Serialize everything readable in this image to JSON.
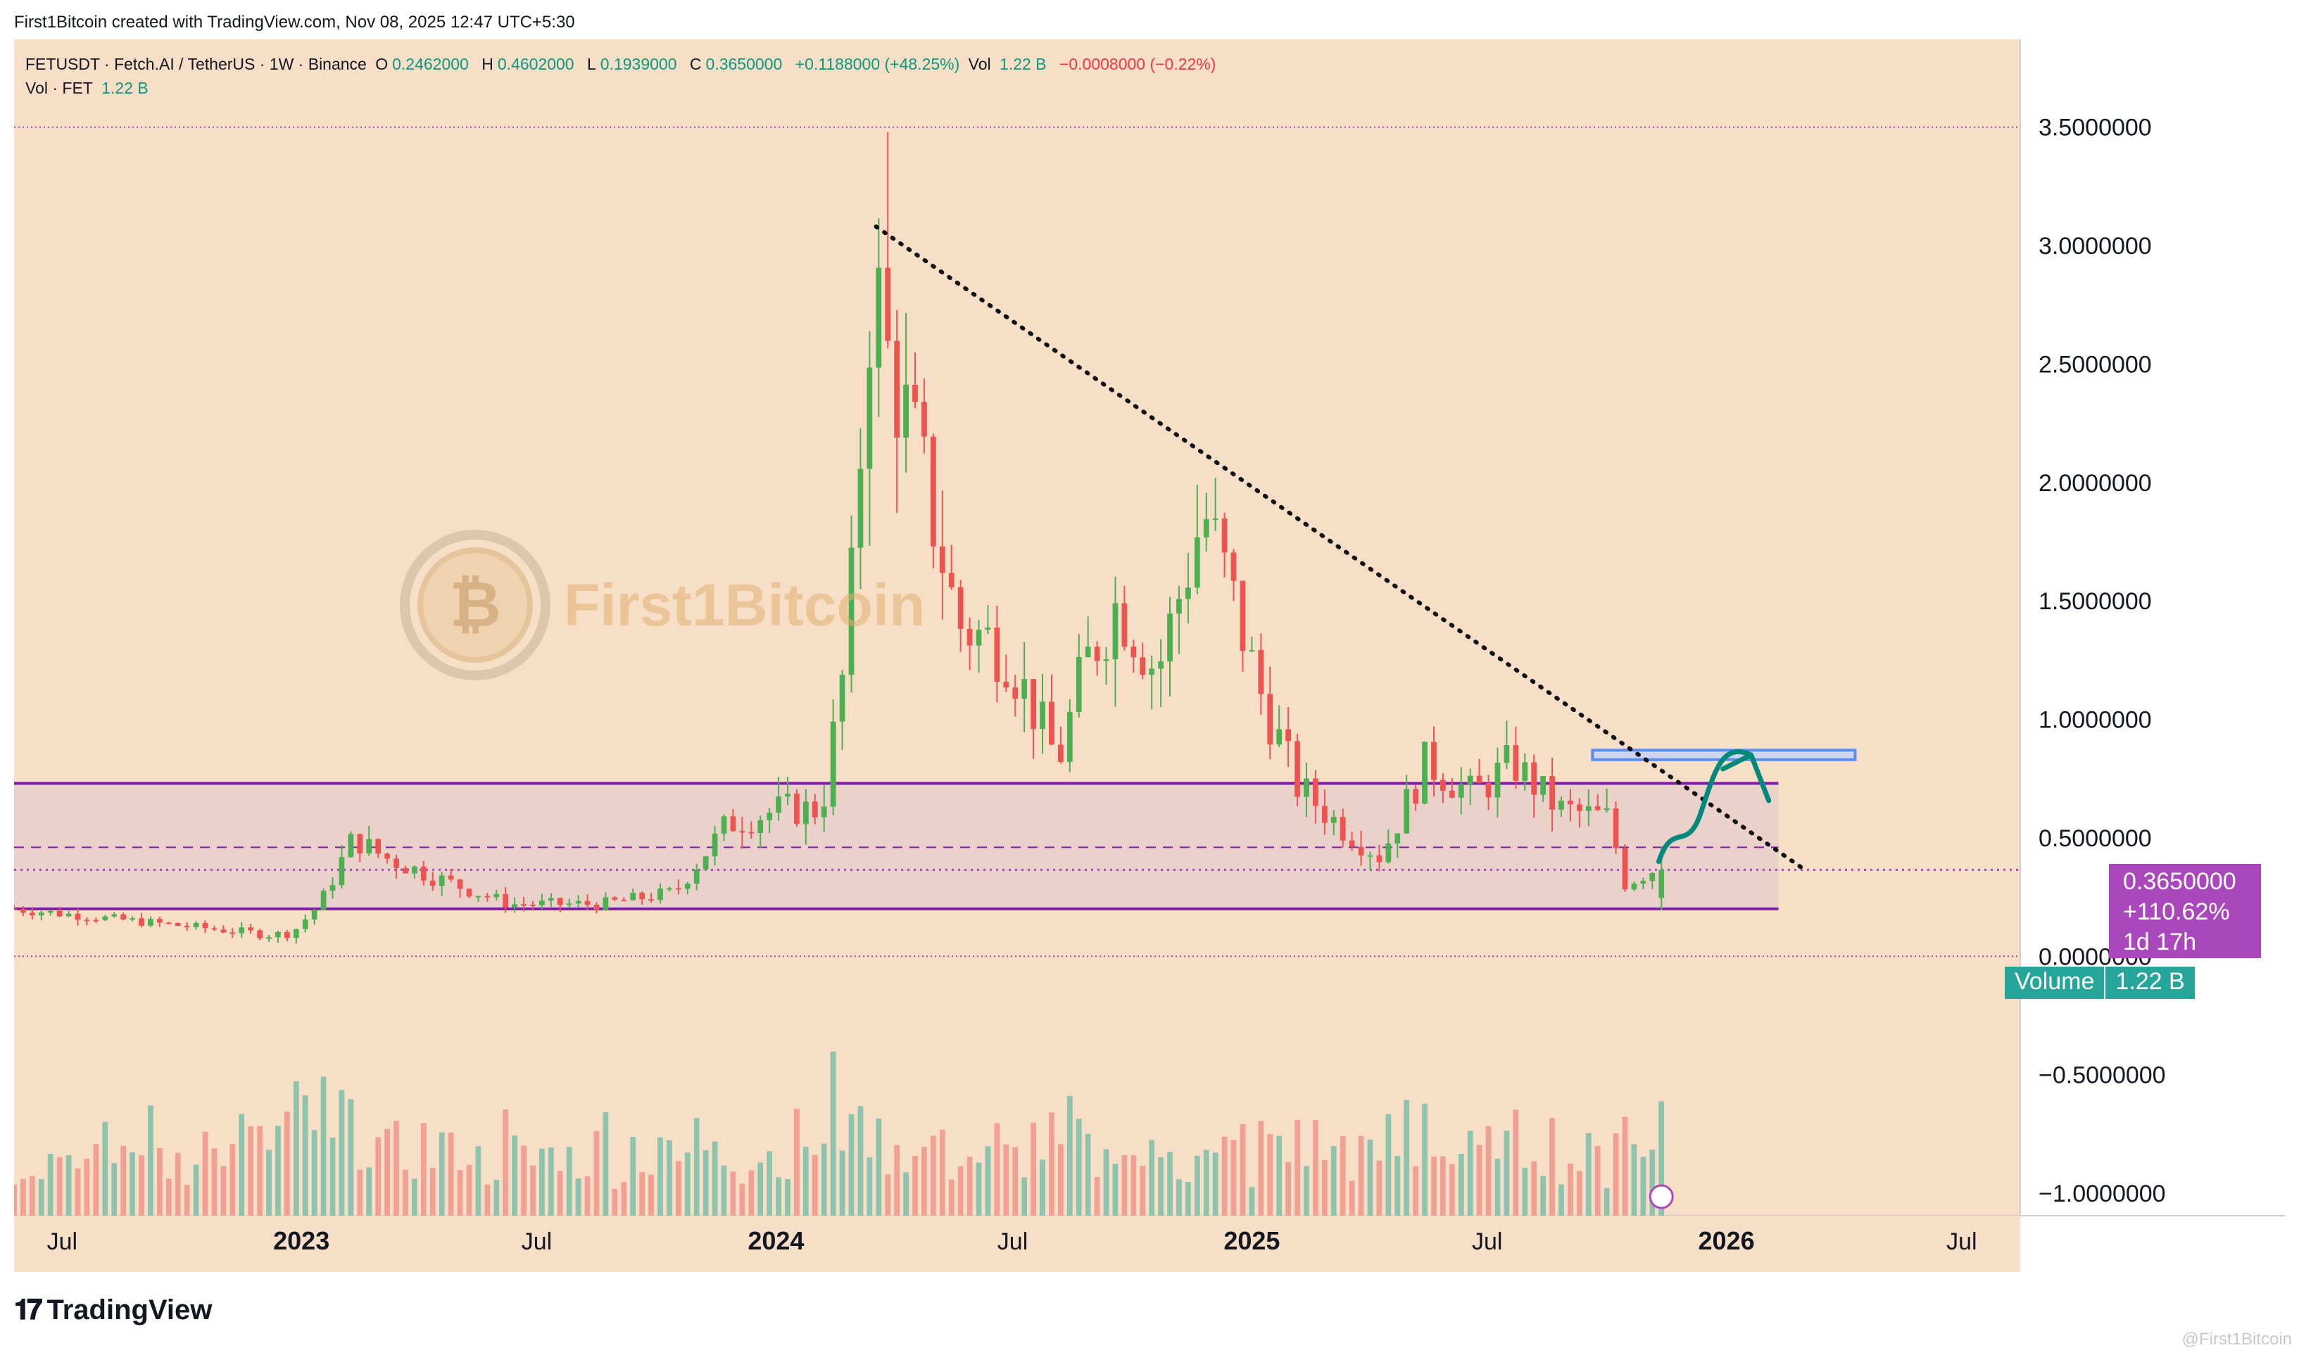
{
  "header": {
    "created_by": "First1Bitcoin created with TradingView.com, Nov 08, 2025 12:47 UTC+5:30"
  },
  "legend": {
    "symbol": "FETUSDT · Fetch.AI / TetherUS · 1W · Binance",
    "o_label": "O",
    "o_value": "0.2462000",
    "h_label": "H",
    "h_value": "0.4602000",
    "l_label": "L",
    "l_value": "0.1939000",
    "c_label": "C",
    "c_value": "0.3650000",
    "change": "+0.1188000 (+48.25%)",
    "vol_label": "Vol",
    "vol_value": "1.22 B",
    "vol_change": "−0.0008000 (−0.22%)",
    "vol_line_label": "Vol · FET",
    "vol_line_value": "1.22 B"
  },
  "watermark": {
    "text": "First1Bitcoin",
    "corner_text": "@First1Bitcoin"
  },
  "price_tag": {
    "price": "0.3650000",
    "change": "+110.62%",
    "countdown": "1d 17h"
  },
  "volume_tag": {
    "label": "Volume",
    "value": "1.22 B"
  },
  "footer": {
    "brand": "TradingView"
  },
  "colors": {
    "background": "#f7dfc7",
    "up": "#4caf50",
    "down": "#ef5350",
    "vol_up": "#8ec3ad",
    "vol_down": "#f2a093",
    "range_box": "#7b1fa2",
    "target_box": "#5b8def",
    "arrow": "#00897b",
    "price_tag": "#ab47bc",
    "volume_tag": "#26a69a"
  },
  "chart_data": {
    "type": "candlestick",
    "symbol": "FETUSDT",
    "interval": "1W",
    "y_axis": {
      "range": [
        -1.0,
        3.9
      ],
      "ticks": [
        "3.5000000",
        "3.0000000",
        "2.5000000",
        "2.0000000",
        "1.5000000",
        "1.0000000",
        "0.5000000",
        "0.0000000",
        "−0.5000000",
        "−1.0000000"
      ],
      "tick_values": [
        3.5,
        3.0,
        2.5,
        2.0,
        1.5,
        1.0,
        0.5,
        0.0,
        -0.5,
        -1.0
      ]
    },
    "x_axis": {
      "ticks": [
        "Jul",
        "2023",
        "Jul",
        "2024",
        "Jul",
        "2025",
        "Jul",
        "2026",
        "Jul"
      ],
      "tick_dates": [
        "2022-07-01",
        "2023-01-01",
        "2023-07-01",
        "2024-01-01",
        "2024-07-01",
        "2025-01-01",
        "2025-07-01",
        "2026-01-01",
        "2026-07-01"
      ],
      "range": [
        "2022-05-25",
        "2026-08-15"
      ]
    },
    "horizontal_levels": [
      3.5,
      0.0
    ],
    "range_box": {
      "top": 0.73,
      "bottom": 0.2,
      "mid_dashed": 0.46,
      "start": "2022-05-25",
      "end": "2026-02-10"
    },
    "current_price_line": 0.365,
    "target_zone": {
      "low": 0.83,
      "high": 0.87,
      "start": "2025-09-20",
      "end": "2026-04-10"
    },
    "trendline": {
      "start": [
        "2024-03-18",
        3.08
      ],
      "end": [
        "2026-03-01",
        0.37
      ]
    },
    "anchors": [
      [
        "2022-05-25",
        0.2
      ],
      [
        "2022-12-10",
        0.09
      ],
      [
        "2022-12-25",
        0.1
      ],
      [
        "2023-01-15",
        0.22
      ],
      [
        "2023-02-10",
        0.5
      ],
      [
        "2023-03-05",
        0.42
      ],
      [
        "2023-04-20",
        0.32
      ],
      [
        "2023-06-10",
        0.22
      ],
      [
        "2023-08-20",
        0.22
      ],
      [
        "2023-10-15",
        0.27
      ],
      [
        "2023-11-25",
        0.56
      ],
      [
        "2024-01-05",
        0.62
      ],
      [
        "2024-02-05",
        0.62
      ],
      [
        "2024-02-25",
        1.3
      ],
      [
        "2024-03-15",
        2.9
      ],
      [
        "2024-03-28",
        2.5
      ],
      [
        "2024-04-20",
        2.1
      ],
      [
        "2024-05-20",
        1.4
      ],
      [
        "2024-06-25",
        1.3
      ],
      [
        "2024-08-05",
        0.82
      ],
      [
        "2024-08-25",
        1.22
      ],
      [
        "2024-09-20",
        1.5
      ],
      [
        "2024-10-20",
        1.2
      ],
      [
        "2024-11-25",
        1.88
      ],
      [
        "2024-12-15",
        1.55
      ],
      [
        "2025-01-05",
        1.15
      ],
      [
        "2025-02-05",
        0.72
      ],
      [
        "2025-03-10",
        0.55
      ],
      [
        "2025-04-10",
        0.42
      ],
      [
        "2025-05-15",
        0.82
      ],
      [
        "2025-06-20",
        0.68
      ],
      [
        "2025-07-20",
        0.82
      ],
      [
        "2025-08-25",
        0.62
      ],
      [
        "2025-10-05",
        0.58
      ],
      [
        "2025-10-12",
        0.3
      ],
      [
        "2025-11-05",
        0.365
      ]
    ],
    "last_candle": {
      "open": 0.2462,
      "high": 0.4602,
      "low": 0.1939,
      "close": 0.365,
      "volume": "1.22 B"
    },
    "high_wick": {
      "date": "2024-03-25",
      "value": 3.48
    },
    "annotation_arrow": {
      "from": [
        "2025-11-10",
        0.4
      ],
      "to": [
        "2026-01-20",
        0.85
      ],
      "description": "expected breakout toward target zone"
    }
  }
}
